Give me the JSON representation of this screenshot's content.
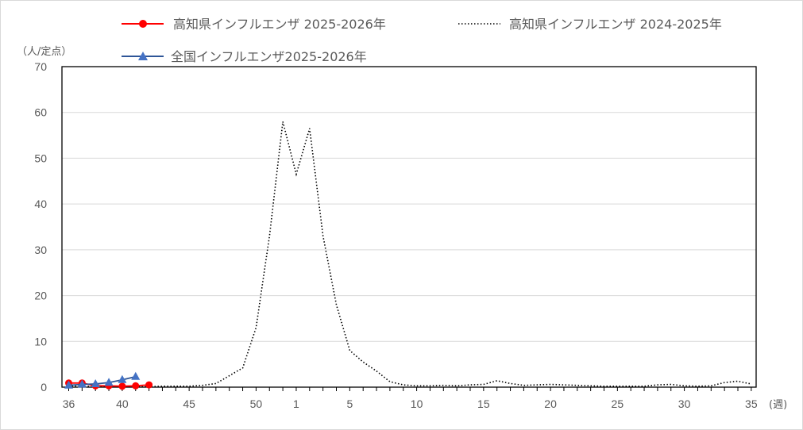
{
  "chart_data": {
    "type": "line",
    "y_unit_label": "（人/定点）",
    "x_unit_label": "(週)",
    "ylim": [
      0,
      70
    ],
    "y_ticks": [
      0,
      10,
      20,
      30,
      40,
      50,
      60,
      70
    ],
    "grid": true,
    "legend_position": "top",
    "x_weeks": [
      36,
      37,
      38,
      39,
      40,
      41,
      42,
      43,
      44,
      45,
      46,
      47,
      48,
      49,
      50,
      51,
      52,
      1,
      2,
      3,
      4,
      5,
      6,
      7,
      8,
      9,
      10,
      11,
      12,
      13,
      14,
      15,
      16,
      17,
      18,
      19,
      20,
      21,
      22,
      23,
      24,
      25,
      26,
      27,
      28,
      29,
      30,
      31,
      32,
      33,
      34,
      35
    ],
    "x_tick_labels": [
      "36",
      "40",
      "45",
      "50",
      "1",
      "5",
      "10",
      "15",
      "20",
      "25",
      "30",
      "35"
    ],
    "series": [
      {
        "name": "高知県インフルエンザ 2025-2026年",
        "color": "#ff0000",
        "marker": "circle",
        "style": "solid",
        "weeks": [
          36,
          37,
          38,
          39,
          40,
          41,
          42
        ],
        "values": [
          0.9,
          0.9,
          0.3,
          0.3,
          0.2,
          0.3,
          0.5
        ]
      },
      {
        "name": "高知県インフルエンザ 2024-2025年",
        "color": "#000000",
        "marker": "none",
        "style": "dotted",
        "weeks": [
          36,
          37,
          38,
          39,
          40,
          41,
          42,
          43,
          44,
          45,
          46,
          47,
          48,
          49,
          50,
          51,
          52,
          1,
          2,
          3,
          4,
          5,
          6,
          7,
          8,
          9,
          10,
          11,
          12,
          13,
          14,
          15,
          16,
          17,
          18,
          19,
          20,
          21,
          22,
          23,
          24,
          25,
          26,
          27,
          28,
          29,
          30,
          31,
          32,
          33,
          34,
          35
        ],
        "values": [
          0.3,
          0.2,
          0.1,
          0.1,
          0.1,
          0.1,
          0.1,
          0.2,
          0.2,
          0.2,
          0.4,
          0.8,
          2.5,
          4.2,
          13,
          33,
          58,
          46.5,
          56.5,
          33,
          18,
          8,
          5.5,
          3.5,
          1.2,
          0.5,
          0.3,
          0.3,
          0.4,
          0.3,
          0.5,
          0.6,
          1.4,
          0.8,
          0.4,
          0.5,
          0.6,
          0.5,
          0.4,
          0.3,
          0.2,
          0.2,
          0.2,
          0.2,
          0.5,
          0.6,
          0.3,
          0.2,
          0.3,
          1,
          1.3,
          0.7
        ]
      },
      {
        "name": "全国インフルエンザ2025-2026年",
        "color": "#2e5597",
        "marker_color": "#4472c4",
        "marker": "triangle",
        "style": "solid",
        "weeks": [
          36,
          37,
          38,
          39,
          40,
          41
        ],
        "values": [
          0.4,
          0.6,
          0.7,
          1.0,
          1.6,
          2.3
        ]
      }
    ]
  }
}
